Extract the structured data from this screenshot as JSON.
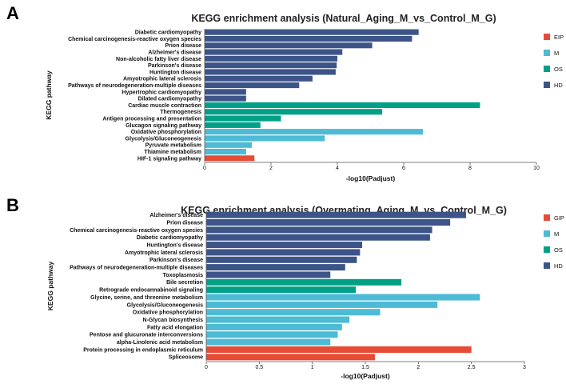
{
  "chart_data": [
    {
      "type": "bar",
      "orientation": "horizontal",
      "panel_letter": "A",
      "title": "KEGG enrichment analysis (Natural_Aging_M_vs_Control_M_G)",
      "xlabel": "-log10(Padjust)",
      "ylabel": "KEGG pathway",
      "xlim": [
        0,
        10
      ],
      "xticks": [
        "0",
        "2",
        "4",
        "6",
        "8",
        "10"
      ],
      "legend": [
        {
          "name": "EIP",
          "color": "#e64b35"
        },
        {
          "name": "M",
          "color": "#4dbbd5"
        },
        {
          "name": "OS",
          "color": "#00a087"
        },
        {
          "name": "HD",
          "color": "#3c5488"
        }
      ],
      "categories": [
        "Diabetic cardiomyopathy",
        "Chemical carcinogenesis-reactive oxygen species",
        "Prion disease",
        "Alzheimer's disease",
        "Non-alcoholic fatty liver disease",
        "Parkinson's disease",
        "Huntington disease",
        "Amyotrophic lateral sclerosis",
        "Pathways of neurodegeneration-multiple diseases",
        "Hypertrophic cardiomyopathy",
        "Dilated cardiomyopathy",
        "Cardiac muscle contraction",
        "Thermogenesis",
        "Antigen processing and presentation",
        "Glucagon signaling pathway",
        "Oxidative phosphorylation",
        "Glycolysis/Gluconeogenesis",
        "Pyruvate metabolism",
        "Thiamine metabolism",
        "HIF-1 signaling pathway"
      ],
      "values": [
        6.45,
        6.25,
        5.05,
        4.15,
        4.0,
        3.98,
        3.95,
        3.25,
        2.85,
        1.25,
        1.25,
        8.3,
        5.35,
        2.3,
        1.68,
        6.58,
        3.62,
        1.42,
        1.25,
        1.5
      ],
      "groups": [
        "HD",
        "HD",
        "HD",
        "HD",
        "HD",
        "HD",
        "HD",
        "HD",
        "HD",
        "HD",
        "HD",
        "OS",
        "OS",
        "OS",
        "OS",
        "M",
        "M",
        "M",
        "M",
        "EIP"
      ]
    },
    {
      "type": "bar",
      "orientation": "horizontal",
      "panel_letter": "B",
      "title": "KEGG enrichment analysis (Overmating_Aging_M_vs_Control_M_G)",
      "xlabel": "-log10(Padjust)",
      "ylabel": "KEGG pathway",
      "xlim": [
        0,
        3
      ],
      "xticks": [
        "0",
        "0.5",
        "1",
        "1.5",
        "2",
        "2.5",
        "3"
      ],
      "legend": [
        {
          "name": "GIP",
          "color": "#e64b35"
        },
        {
          "name": "M",
          "color": "#4dbbd5"
        },
        {
          "name": "OS",
          "color": "#00a087"
        },
        {
          "name": "HD",
          "color": "#3c5488"
        }
      ],
      "categories": [
        "Alzheimer's disease",
        "Prion disease",
        "Chemical carcinogenesis-reactive oxygen species",
        "Diabetic cardiomyopathy",
        "Huntington's disease",
        "Amyotrophic lateral sclerosis",
        "Parkinson's disease",
        "Pathways of neurodegeneration-multiple diseases",
        "Toxoplasmosis",
        "Bile secretion",
        "Retrograde endocannabinoid signaling",
        "Glycine, serine, and threonine metabolism",
        "Glycolysis/Gluconeogenesis",
        "Oxidative phosphorylation",
        "N-Glycan biosynthesis",
        "Fatty acid elongation",
        "Pentose and glucuronate interconversions",
        "alpha-Linolenic acid metabolism",
        "Protein processing in endoplasmic reticulum",
        "Spliceosome"
      ],
      "values": [
        2.45,
        2.3,
        2.13,
        2.11,
        1.47,
        1.45,
        1.42,
        1.31,
        1.17,
        1.84,
        1.41,
        2.58,
        2.18,
        1.64,
        1.35,
        1.28,
        1.24,
        1.17,
        2.5,
        1.59
      ],
      "groups": [
        "HD",
        "HD",
        "HD",
        "HD",
        "HD",
        "HD",
        "HD",
        "HD",
        "HD",
        "OS",
        "OS",
        "M",
        "M",
        "M",
        "M",
        "M",
        "M",
        "M",
        "GIP",
        "GIP"
      ]
    }
  ]
}
